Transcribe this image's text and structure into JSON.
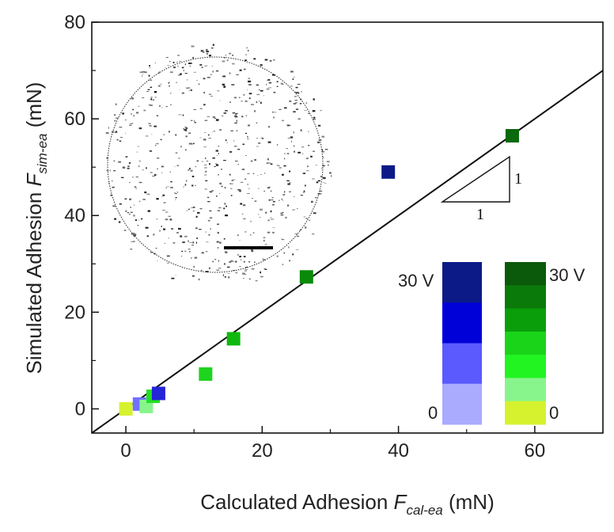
{
  "chart_data": {
    "type": "scatter",
    "xlabel_main": "Calculated Adhesion ",
    "xlabel_var": "F",
    "xlabel_sub": "cal-ea",
    "xlabel_unit": "  (mN)",
    "ylabel_main": "Simulated Adhesion ",
    "ylabel_var": "F",
    "ylabel_sub": "sim-ea",
    "ylabel_unit": "  (mN)",
    "xlim": [
      -5,
      70
    ],
    "ylim": [
      -5,
      80
    ],
    "xticks": [
      0,
      20,
      40,
      60
    ],
    "yticks": [
      0,
      20,
      40,
      60,
      80
    ],
    "grid": false,
    "reference_line": {
      "slope": 1,
      "intercept": 0
    },
    "slope_triangle": {
      "rise_label": "1",
      "run_label": "1"
    },
    "series": [
      {
        "marker": "square",
        "points": [
          {
            "x": 0.0,
            "y": 0.0,
            "color": "#d6f22e"
          },
          {
            "x": 2.0,
            "y": 1.0,
            "color": "#7070ff"
          },
          {
            "x": 3.0,
            "y": 0.5,
            "color": "#88f58c"
          },
          {
            "x": 4.0,
            "y": 2.6,
            "color": "#22e022"
          },
          {
            "x": 4.8,
            "y": 3.2,
            "color": "#2424d8"
          },
          {
            "x": 11.7,
            "y": 7.2,
            "color": "#1fd41f"
          },
          {
            "x": 15.8,
            "y": 14.5,
            "color": "#0fb80f"
          },
          {
            "x": 26.5,
            "y": 27.3,
            "color": "#0a8a0a"
          },
          {
            "x": 38.5,
            "y": 49.0,
            "color": "#0c1a88"
          },
          {
            "x": 56.7,
            "y": 56.5,
            "color": "#0b6a0b"
          }
        ]
      }
    ],
    "legends": [
      {
        "placement": "bottom-right-left",
        "top_label": "30 V",
        "bottom_label": "0",
        "colors": [
          "#0c1a88",
          "#0000d8",
          "#5a5aff",
          "#aaaaff"
        ]
      },
      {
        "placement": "bottom-right",
        "top_label": "30 V",
        "bottom_label": "0",
        "colors": [
          "#0b5a0b",
          "#0a7a0a",
          "#0a9e0a",
          "#1ad41a",
          "#22f422",
          "#88f58c",
          "#d6f22e"
        ]
      }
    ]
  },
  "inset": {
    "type": "microscopy-image",
    "dot_color": "#111111",
    "scale_bar_color": "#000000"
  }
}
